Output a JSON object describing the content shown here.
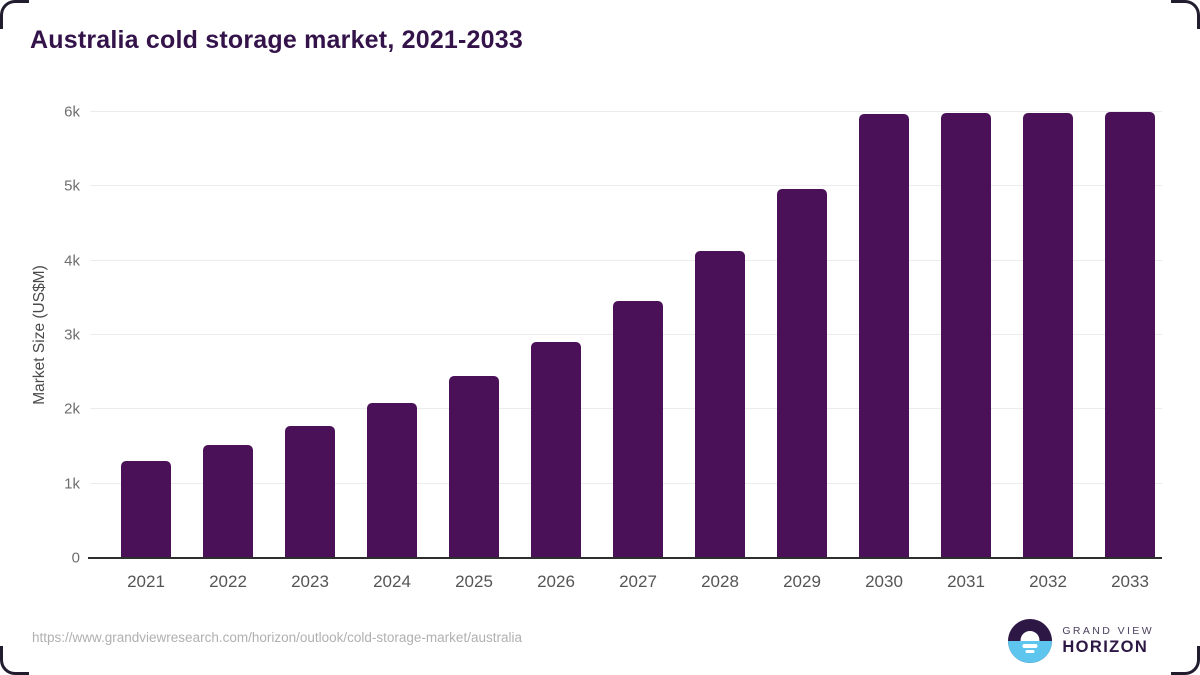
{
  "page": {
    "title": "Australia cold storage market, 2021-2033",
    "source_url": "https://www.grandviewresearch.com/horizon/outlook/cold-storage-market/australia"
  },
  "logo": {
    "icon": "sunrise-horizon-logo-icon",
    "brand_top": "GRAND VIEW",
    "brand_bottom": "HORIZON"
  },
  "colors": {
    "bar": "#4a1159",
    "title_text": "#331349",
    "gridline": "#ececec",
    "axis_line": "#2e2e2e",
    "tick_label": "#6e6e6e",
    "x_label": "#555555",
    "url_text": "#b0b0b0",
    "logo_dark_purple": "#2d1745",
    "logo_light_blue": "#5ec5ee"
  },
  "chart_data": {
    "type": "bar",
    "title": "Australia cold storage market, 2021-2033",
    "xlabel": "",
    "ylabel": "Market Size (US$M)",
    "categories": [
      "2021",
      "2022",
      "2023",
      "2024",
      "2025",
      "2026",
      "2027",
      "2028",
      "2029",
      "2030",
      "2031",
      "2032",
      "2033"
    ],
    "values": [
      1300,
      1525,
      1780,
      2080,
      2450,
      2900,
      3455,
      4130,
      4960,
      5970,
      5985,
      5990,
      6000
    ],
    "ylim": [
      0,
      6000
    ],
    "ytick_values": [
      0,
      1000,
      2000,
      3000,
      4000,
      5000,
      6000
    ],
    "ytick_labels": [
      "0",
      "1k",
      "2k",
      "3k",
      "4k",
      "5k",
      "6k"
    ],
    "grid": true,
    "legend": false,
    "bar_color": "#4a1159"
  }
}
